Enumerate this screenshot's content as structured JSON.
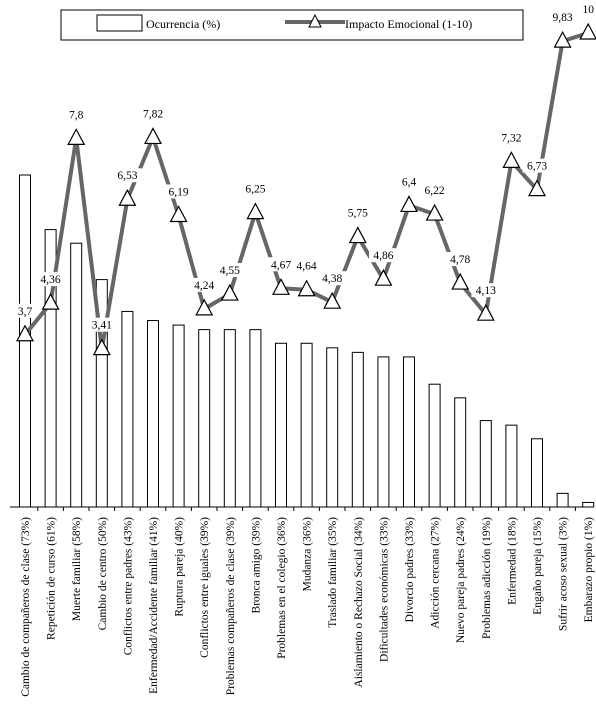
{
  "chart_data": {
    "type": "bar",
    "title": "",
    "xlabel": "",
    "ylabel": "",
    "grid": false,
    "legend_position": "top",
    "categories": [
      "Cambio de compañeros de clase (73%)",
      "Repetición de curso (61%)",
      "Muerte familiar (58%)",
      "Cambio de centro (50%)",
      "Conflictos entre padres (43%)",
      "Enfermedad/Accidente familiar (41%)",
      "Ruptura pareja (40%)",
      "Conflictos entre iguales (39%)",
      "Problemas compañeros de clase (39%)",
      "Bronca amigo (39%)",
      "Problemas en el colegio (36%)",
      "Mudanza (36%)",
      "Traslado familiar (35%)",
      "Aislamiento o Rechazo Social (34%)",
      "Dificultades económicas (33%)",
      "Divorcio padres (33%)",
      "Adicción cercana (27%)",
      "Nuevo pareja padres (24%)",
      "Problemas adicción (19%)",
      "Enfermedad (18%)",
      "Engaño pareja (15%)",
      "Sufrir acoso sexual (3%)",
      "Embarazo propio (1%)"
    ],
    "series": [
      {
        "name": "Ocurrencia (%)",
        "kind": "bar",
        "values": [
          73,
          61,
          58,
          50,
          43,
          41,
          40,
          39,
          39,
          39,
          36,
          36,
          35,
          34,
          33,
          33,
          27,
          24,
          19,
          18,
          15,
          3,
          1
        ]
      },
      {
        "name": "Impacto Emocional (1-10)",
        "kind": "line",
        "marker": "triangle",
        "values": [
          3.7,
          4.36,
          7.8,
          3.41,
          6.53,
          7.82,
          6.19,
          4.24,
          4.55,
          6.25,
          4.67,
          4.64,
          4.38,
          5.75,
          4.86,
          6.4,
          6.22,
          4.78,
          4.13,
          7.32,
          6.73,
          9.83,
          10
        ],
        "labels": [
          "3,7",
          "4,36",
          "7,8",
          "3,41",
          "6,53",
          "7,82",
          "6,19",
          "4,24",
          "4,55",
          "6,25",
          "4,67",
          "4,64",
          "4,38",
          "5,75",
          "4,86",
          "6,4",
          "6,22",
          "4,78",
          "4,13",
          "7,32",
          "6,73",
          "9,83",
          "10"
        ]
      }
    ],
    "ylim_bar": [
      0,
      100
    ],
    "ylim_line": [
      0,
      10
    ],
    "colors": {
      "bar_fill": "#ffffff",
      "bar_stroke": "#000000",
      "line": "#666666",
      "marker_fill": "#ffffff",
      "marker_stroke": "#000000"
    }
  },
  "legend": {
    "bar_label": "Ocurrencia (%)",
    "line_label": "Impacto Emocional (1-10)"
  }
}
